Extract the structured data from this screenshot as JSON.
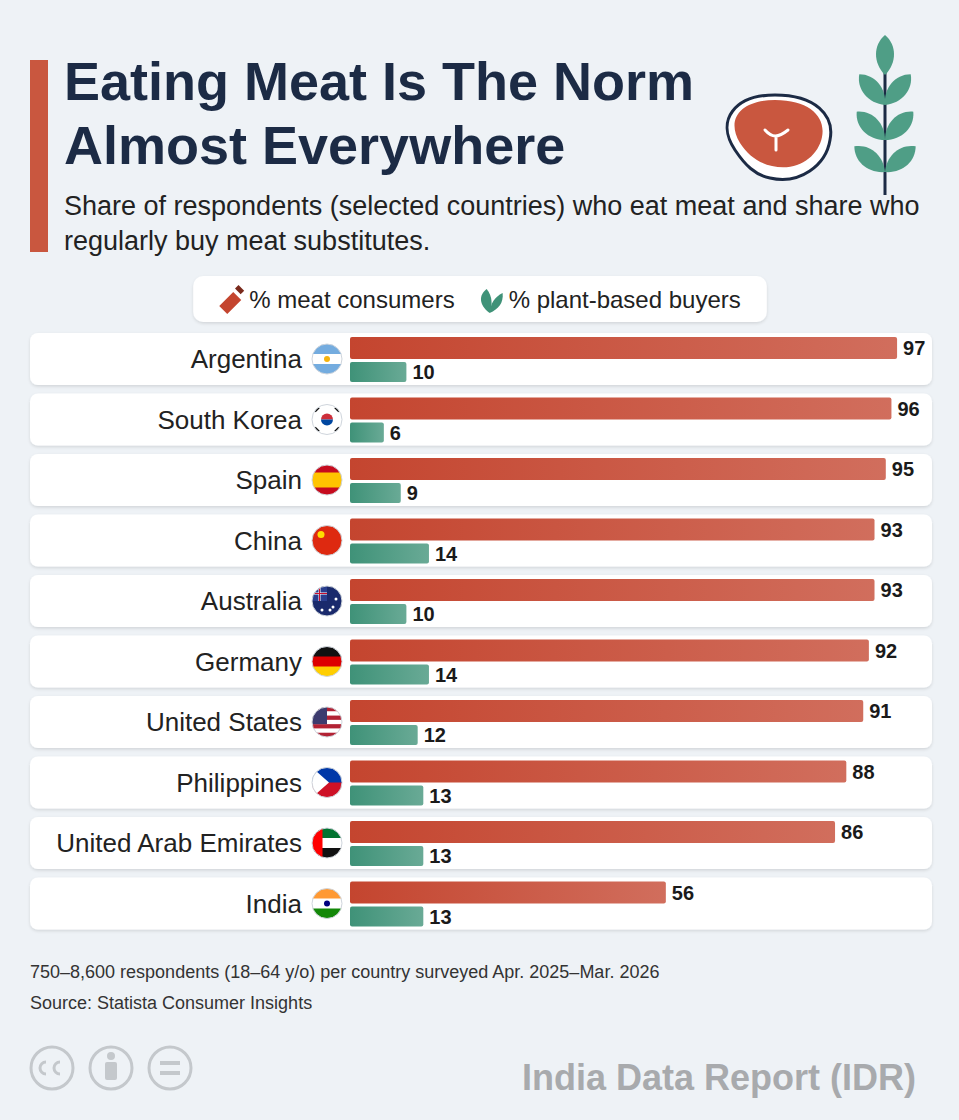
{
  "chart_data": {
    "type": "bar",
    "orientation": "horizontal",
    "title": "Eating Meat Is The Norm Almost Everywhere",
    "subtitle": "Share of respondents (selected countries) who eat meat and share who regularly buy meat substitutes.",
    "categories": [
      "Argentina",
      "South Korea",
      "Spain",
      "China",
      "Australia",
      "Germany",
      "United States",
      "Philippines",
      "United Arab Emirates",
      "India"
    ],
    "series": [
      {
        "name": "% meat consumers",
        "color": "#c4452f",
        "values": [
          97,
          96,
          95,
          93,
          93,
          92,
          91,
          88,
          86,
          56
        ]
      },
      {
        "name": "% plant-based buyers",
        "color": "#3f9278",
        "values": [
          10,
          6,
          9,
          14,
          10,
          14,
          12,
          13,
          13,
          13
        ]
      }
    ],
    "xlim": [
      0,
      100
    ],
    "data_labels": true,
    "tick_labels": "y",
    "legend": "top",
    "note": "750–8,600 respondents (18–64 y/o) per country surveyed Apr. 2025–Mar. 2026",
    "source": "Source: Statista Consumer Insights",
    "credit": "India Data Report (IDR)"
  }
}
